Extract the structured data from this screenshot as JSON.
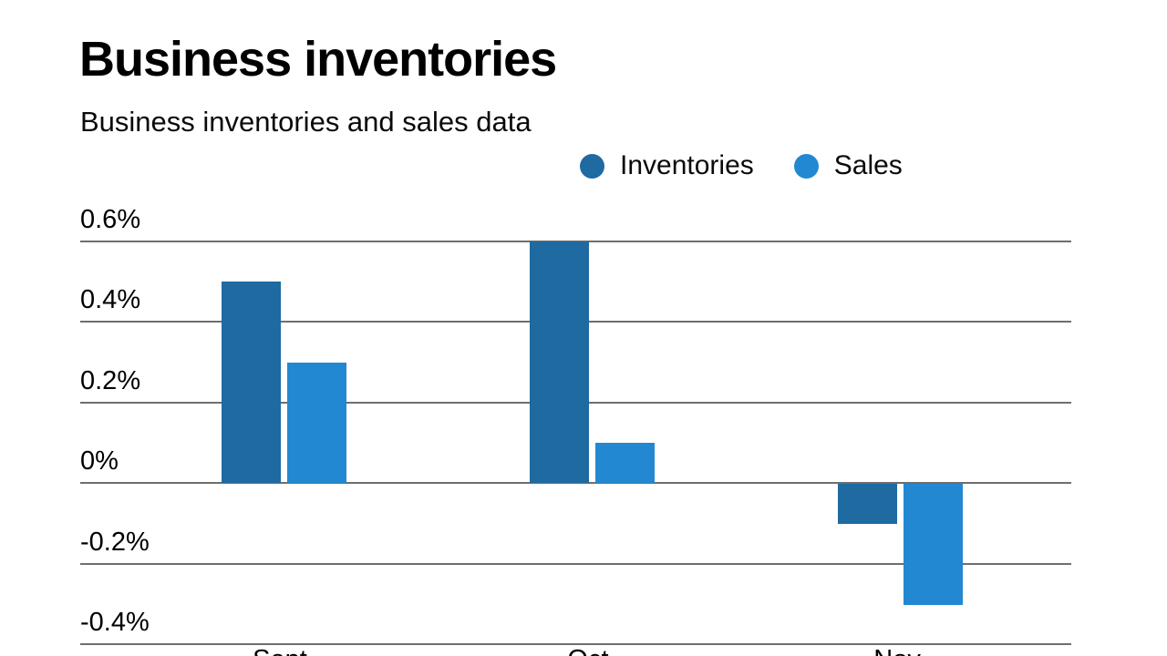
{
  "header": {
    "title": "Business inventories",
    "subtitle": "Business inventories and sales data"
  },
  "legend": {
    "items": [
      {
        "label": "Inventories",
        "color": "#1e6aa1"
      },
      {
        "label": "Sales",
        "color": "#2288d1"
      }
    ]
  },
  "chart_data": {
    "type": "bar",
    "title": "Business inventories",
    "subtitle": "Business inventories and sales data",
    "categories": [
      "Sept.",
      "Oct.",
      "Nov."
    ],
    "series": [
      {
        "name": "Inventories",
        "color": "#1e6aa1",
        "values": [
          0.5,
          0.6,
          -0.1
        ]
      },
      {
        "name": "Sales",
        "color": "#2288d1",
        "values": [
          0.3,
          0.1,
          -0.3
        ]
      }
    ],
    "unit": "%",
    "ylim": [
      -0.4,
      0.6
    ],
    "yticks": [
      {
        "value": 0.6,
        "label": "0.6%"
      },
      {
        "value": 0.4,
        "label": "0.4%"
      },
      {
        "value": 0.2,
        "label": "0.2%"
      },
      {
        "value": 0,
        "label": "0%"
      },
      {
        "value": -0.2,
        "label": "-0.2%"
      },
      {
        "value": -0.4,
        "label": "-0.4%"
      }
    ],
    "grid": true,
    "legend_position": "top-right",
    "xlabels_clipped": true
  }
}
